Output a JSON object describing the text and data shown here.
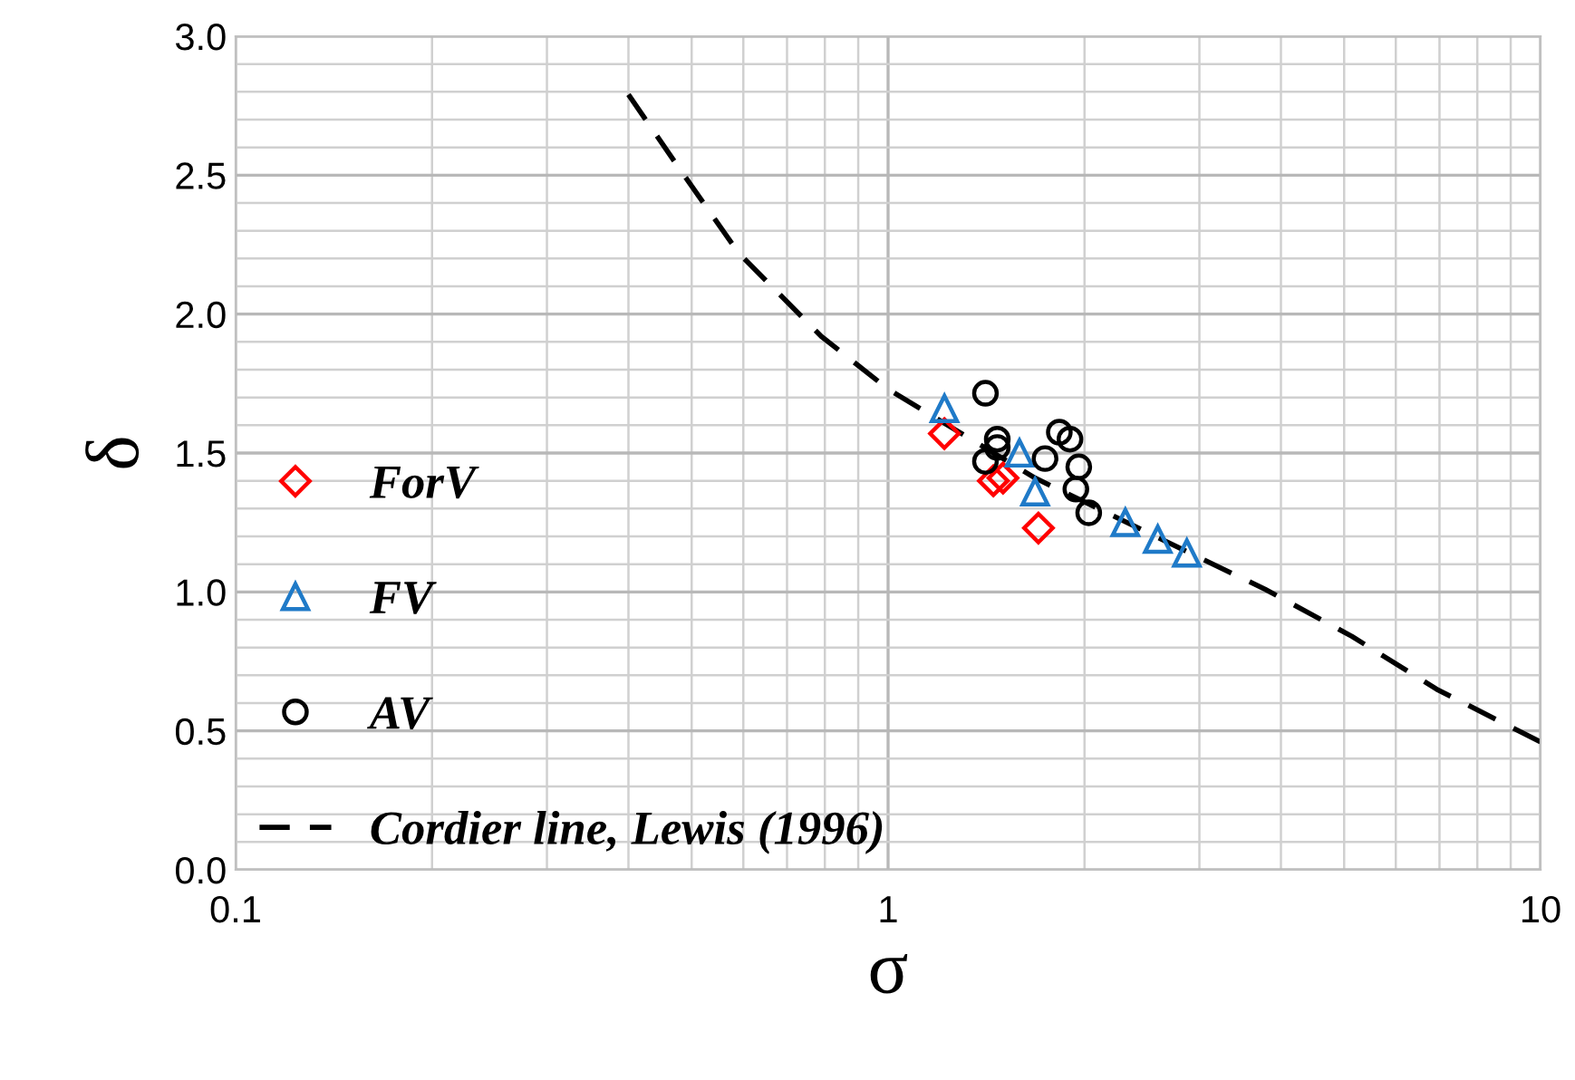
{
  "chart_data": {
    "type": "scatter",
    "xlabel": "σ",
    "ylabel": "δ",
    "log": "x",
    "xlim": [
      0.1,
      10
    ],
    "xticks": [
      0.1,
      1,
      10
    ],
    "ylim": [
      0,
      3
    ],
    "yticks": [
      {
        "value": 0,
        "label": "0.0"
      },
      {
        "value": 0.5,
        "label": "0.5"
      },
      {
        "value": 1,
        "label": "1.0"
      },
      {
        "value": 1.5,
        "label": "1.5"
      },
      {
        "value": 2,
        "label": "2.0"
      },
      {
        "value": 2.5,
        "label": "2.5"
      },
      {
        "value": 3,
        "label": "3.0"
      }
    ],
    "grid": true,
    "legend": "left",
    "series": [
      {
        "name": "ForV",
        "color": "#ff0000",
        "marker": "diamond",
        "x": [
          1.22,
          1.45,
          1.5,
          1.55,
          1.7
        ],
        "values": [
          1.57,
          1.4,
          1.41,
          null,
          1.23
        ]
      },
      {
        "name": "FV",
        "color": "#1f7ac8",
        "marker": "triangle",
        "x": [
          1.22,
          1.59,
          1.68,
          2.31,
          2.59,
          2.87
        ],
        "values": [
          1.66,
          1.5,
          1.36,
          1.25,
          1.19,
          1.14
        ]
      },
      {
        "name": "AV",
        "color": "#000000",
        "marker": "circle",
        "x": [
          1.41,
          1.47,
          1.47,
          1.41,
          1.74,
          1.83,
          1.9,
          1.96,
          1.94,
          2.03
        ],
        "values": [
          1.715,
          1.55,
          1.52,
          1.47,
          1.48,
          1.575,
          1.55,
          1.45,
          1.37,
          1.285
        ]
      },
      {
        "name": "Cordier line, Lewis (1996)",
        "type": "line",
        "color": "#000000",
        "line_style": "dashed",
        "marker": "none",
        "x": [
          0.4,
          0.48,
          0.59,
          0.79,
          1.0,
          1.68,
          2.9,
          3.78,
          5.14,
          6.93,
          10
        ],
        "values": [
          2.79,
          2.52,
          2.22,
          1.92,
          1.73,
          1.41,
          1.14,
          1.01,
          0.84,
          0.65,
          0.46
        ]
      }
    ]
  }
}
